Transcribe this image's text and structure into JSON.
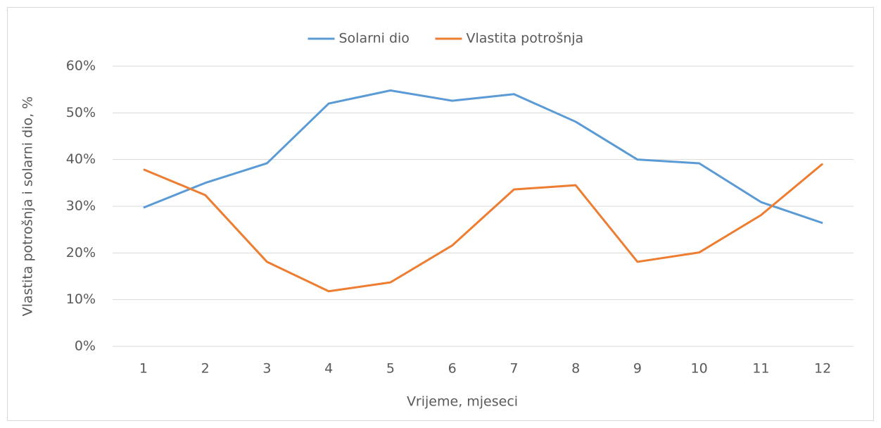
{
  "chart_data": {
    "type": "line",
    "x_label": "Vrijeme, mjeseci",
    "y_label": "Vlastita potrošnja i solarni dio, %",
    "categories": [
      1,
      2,
      3,
      4,
      5,
      6,
      7,
      8,
      9,
      10,
      11,
      12
    ],
    "series": [
      {
        "name": "Solarni dio",
        "color": "#5b9bd5",
        "values": [
          29.7,
          35.0,
          39.2,
          52.0,
          54.8,
          52.6,
          54.0,
          48.1,
          40.0,
          39.2,
          30.9,
          26.4
        ]
      },
      {
        "name": "Vlastita potrošnja",
        "color": "#ed7d31",
        "values": [
          37.9,
          32.4,
          18.1,
          11.8,
          13.7,
          21.6,
          33.6,
          34.5,
          18.1,
          20.1,
          28.1,
          39.1
        ]
      }
    ],
    "ylim": [
      0,
      60
    ],
    "yticks": [
      {
        "value": 0,
        "label": "0%"
      },
      {
        "value": 10,
        "label": "10%"
      },
      {
        "value": 20,
        "label": "20%"
      },
      {
        "value": 30,
        "label": "30%"
      },
      {
        "value": 40,
        "label": "40%"
      },
      {
        "value": 50,
        "label": "50%"
      },
      {
        "value": 60,
        "label": "60%"
      }
    ],
    "grid": true,
    "legend": "top"
  }
}
